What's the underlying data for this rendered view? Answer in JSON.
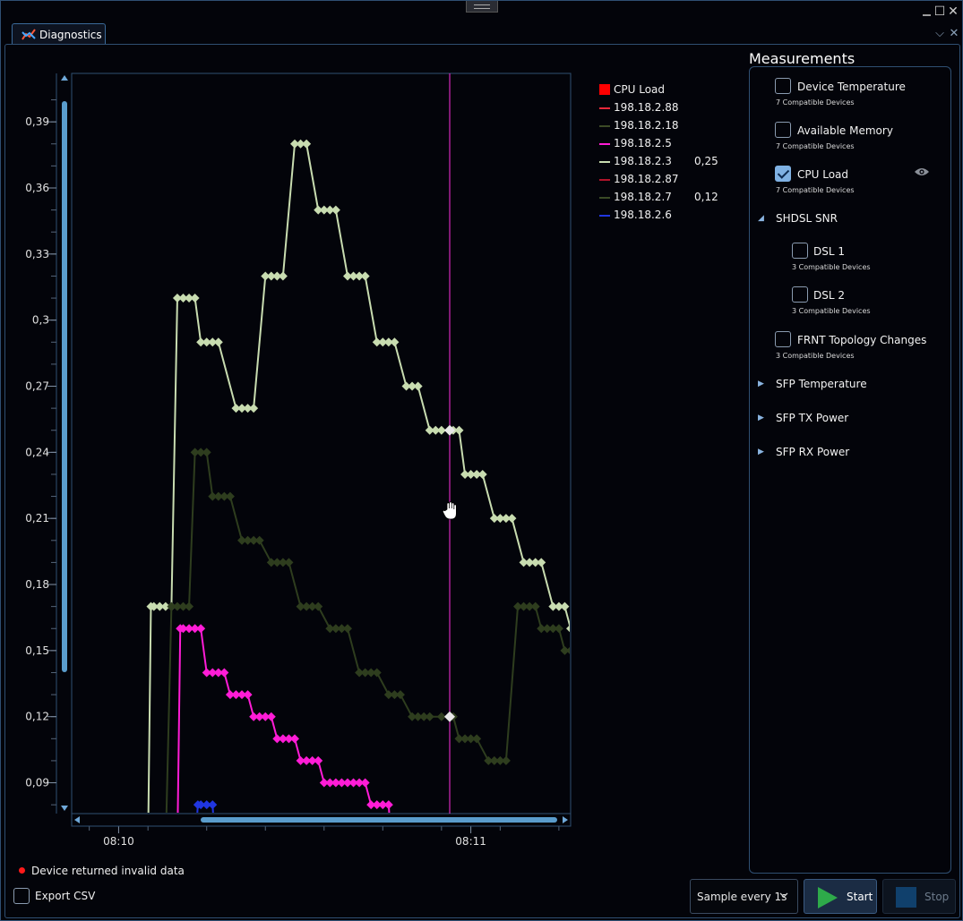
{
  "window": {
    "maximize_glyph": "☐",
    "close_glyph": "✕"
  },
  "tab": {
    "label": "Diagnostics",
    "chevron_glyph": "⌵",
    "close_glyph": "✕"
  },
  "chart_data": {
    "type": "line",
    "title": "",
    "xlabel": "",
    "ylabel": "",
    "ylim": [
      0.076,
      0.412
    ],
    "x_unit": "seconds after 08:10",
    "xlim": [
      -8,
      77
    ],
    "yticks": [
      "0,09",
      "0,12",
      "0,15",
      "0,18",
      "0,21",
      "0,24",
      "0,27",
      "0,3",
      "0,33",
      "0,36",
      "0,39"
    ],
    "ytick_values": [
      0.09,
      0.12,
      0.15,
      0.18,
      0.21,
      0.24,
      0.27,
      0.3,
      0.33,
      0.36,
      0.39
    ],
    "xticks": [
      "08:10",
      "08:11"
    ],
    "xtick_values": [
      0,
      60
    ],
    "cursor_x": 56.4,
    "series": [
      {
        "name": "198.18.2.3",
        "color": "#c8dcb0",
        "points": [
          [
            5,
            0.06
          ],
          [
            5.5,
            0.17
          ],
          [
            6,
            0.17
          ],
          [
            7,
            0.17
          ],
          [
            8,
            0.17
          ],
          [
            9,
            0.17
          ],
          [
            10,
            0.31
          ],
          [
            11,
            0.31
          ],
          [
            12,
            0.31
          ],
          [
            13,
            0.31
          ],
          [
            14,
            0.29
          ],
          [
            15,
            0.29
          ],
          [
            16,
            0.29
          ],
          [
            17,
            0.29
          ],
          [
            20,
            0.26
          ],
          [
            21,
            0.26
          ],
          [
            22,
            0.26
          ],
          [
            23,
            0.26
          ],
          [
            25,
            0.32
          ],
          [
            26,
            0.32
          ],
          [
            27,
            0.32
          ],
          [
            28,
            0.32
          ],
          [
            30,
            0.38
          ],
          [
            31,
            0.38
          ],
          [
            32,
            0.38
          ],
          [
            34,
            0.35
          ],
          [
            35,
            0.35
          ],
          [
            36,
            0.35
          ],
          [
            37,
            0.35
          ],
          [
            39,
            0.32
          ],
          [
            40,
            0.32
          ],
          [
            41,
            0.32
          ],
          [
            42,
            0.32
          ],
          [
            44,
            0.29
          ],
          [
            45,
            0.29
          ],
          [
            46,
            0.29
          ],
          [
            47,
            0.29
          ],
          [
            49,
            0.27
          ],
          [
            50,
            0.27
          ],
          [
            51,
            0.27
          ],
          [
            53,
            0.25
          ],
          [
            54,
            0.25
          ],
          [
            55,
            0.25
          ],
          [
            56.4,
            0.25
          ],
          [
            57,
            0.25
          ],
          [
            58,
            0.25
          ],
          [
            59,
            0.23
          ],
          [
            60,
            0.23
          ],
          [
            61,
            0.23
          ],
          [
            62,
            0.23
          ],
          [
            64,
            0.21
          ],
          [
            65,
            0.21
          ],
          [
            66,
            0.21
          ],
          [
            67,
            0.21
          ],
          [
            69,
            0.19
          ],
          [
            70,
            0.19
          ],
          [
            71,
            0.19
          ],
          [
            72,
            0.19
          ],
          [
            74,
            0.17
          ],
          [
            75,
            0.17
          ],
          [
            76,
            0.17
          ],
          [
            77,
            0.16
          ]
        ]
      },
      {
        "name": "198.18.2.7",
        "color": "#2e3d1e",
        "points": [
          [
            8,
            0.06
          ],
          [
            9,
            0.17
          ],
          [
            10,
            0.17
          ],
          [
            11,
            0.17
          ],
          [
            12,
            0.17
          ],
          [
            13,
            0.24
          ],
          [
            14,
            0.24
          ],
          [
            15,
            0.24
          ],
          [
            16,
            0.22
          ],
          [
            17,
            0.22
          ],
          [
            18,
            0.22
          ],
          [
            19,
            0.22
          ],
          [
            21,
            0.2
          ],
          [
            22,
            0.2
          ],
          [
            23,
            0.2
          ],
          [
            24,
            0.2
          ],
          [
            26,
            0.19
          ],
          [
            27,
            0.19
          ],
          [
            28,
            0.19
          ],
          [
            29,
            0.19
          ],
          [
            31,
            0.17
          ],
          [
            32,
            0.17
          ],
          [
            33,
            0.17
          ],
          [
            34,
            0.17
          ],
          [
            36,
            0.16
          ],
          [
            37,
            0.16
          ],
          [
            38,
            0.16
          ],
          [
            39,
            0.16
          ],
          [
            41,
            0.14
          ],
          [
            42,
            0.14
          ],
          [
            43,
            0.14
          ],
          [
            44,
            0.14
          ],
          [
            46,
            0.13
          ],
          [
            47,
            0.13
          ],
          [
            48,
            0.13
          ],
          [
            50,
            0.12
          ],
          [
            51,
            0.12
          ],
          [
            52,
            0.12
          ],
          [
            53,
            0.12
          ],
          [
            55,
            0.12
          ],
          [
            56.4,
            0.12
          ],
          [
            57,
            0.12
          ],
          [
            58,
            0.11
          ],
          [
            59,
            0.11
          ],
          [
            60,
            0.11
          ],
          [
            61,
            0.11
          ],
          [
            63,
            0.1
          ],
          [
            64,
            0.1
          ],
          [
            65,
            0.1
          ],
          [
            66,
            0.1
          ],
          [
            68,
            0.17
          ],
          [
            69,
            0.17
          ],
          [
            70,
            0.17
          ],
          [
            71,
            0.17
          ],
          [
            72,
            0.16
          ],
          [
            73,
            0.16
          ],
          [
            74,
            0.16
          ],
          [
            75,
            0.16
          ],
          [
            76,
            0.15
          ],
          [
            77,
            0.15
          ]
        ]
      },
      {
        "name": "198.18.2.5",
        "color": "#ff1cd6",
        "points": [
          [
            10,
            0.06
          ],
          [
            10.5,
            0.16
          ],
          [
            11,
            0.16
          ],
          [
            12,
            0.16
          ],
          [
            13,
            0.16
          ],
          [
            14,
            0.16
          ],
          [
            15,
            0.14
          ],
          [
            16,
            0.14
          ],
          [
            17,
            0.14
          ],
          [
            18,
            0.14
          ],
          [
            19,
            0.13
          ],
          [
            20,
            0.13
          ],
          [
            21,
            0.13
          ],
          [
            22,
            0.13
          ],
          [
            23,
            0.12
          ],
          [
            24,
            0.12
          ],
          [
            25,
            0.12
          ],
          [
            26,
            0.12
          ],
          [
            27,
            0.11
          ],
          [
            28,
            0.11
          ],
          [
            29,
            0.11
          ],
          [
            30,
            0.11
          ],
          [
            31,
            0.1
          ],
          [
            32,
            0.1
          ],
          [
            33,
            0.1
          ],
          [
            34,
            0.1
          ],
          [
            35,
            0.09
          ],
          [
            36,
            0.09
          ],
          [
            37,
            0.09
          ],
          [
            38,
            0.09
          ],
          [
            39,
            0.09
          ],
          [
            40,
            0.09
          ],
          [
            41,
            0.09
          ],
          [
            42,
            0.09
          ],
          [
            43,
            0.08
          ],
          [
            44,
            0.08
          ],
          [
            45,
            0.08
          ],
          [
            46,
            0.08
          ],
          [
            46.5,
            0.06
          ]
        ]
      },
      {
        "name": "198.18.2.6",
        "color": "#2036e0",
        "points": [
          [
            13,
            0.06
          ],
          [
            13.5,
            0.08
          ],
          [
            14,
            0.08
          ],
          [
            15,
            0.08
          ],
          [
            16,
            0.08
          ],
          [
            16.5,
            0.06
          ]
        ]
      },
      {
        "name": "198.18.2.88",
        "color": "#e8283a",
        "points": []
      },
      {
        "name": "198.18.2.18",
        "color": "#3c4a26",
        "points": []
      },
      {
        "name": "198.18.2.87",
        "color": "#b0142a",
        "points": []
      }
    ]
  },
  "legend": {
    "title": {
      "label": "CPU Load",
      "color": "#ff0000"
    },
    "items": [
      {
        "label": "198.18.2.88",
        "color": "#e8283a",
        "value": ""
      },
      {
        "label": "198.18.2.18",
        "color": "#3c4a26",
        "value": ""
      },
      {
        "label": "198.18.2.5",
        "color": "#ff1cd6",
        "value": ""
      },
      {
        "label": "198.18.2.3",
        "color": "#c8dcb0",
        "value": "0,25"
      },
      {
        "label": "198.18.2.87",
        "color": "#b0142a",
        "value": ""
      },
      {
        "label": "198.18.2.7",
        "color": "#3a4a26",
        "value": "0,12"
      },
      {
        "label": "198.18.2.6",
        "color": "#2036e0",
        "value": ""
      }
    ]
  },
  "measurements": {
    "title": "Measurements",
    "device_temperature": {
      "label": "Device Temperature",
      "sub": "7 Compatible Devices",
      "checked": false
    },
    "available_memory": {
      "label": "Available Memory",
      "sub": "7 Compatible Devices",
      "checked": false
    },
    "cpu_load": {
      "label": "CPU Load",
      "sub": "7 Compatible Devices",
      "checked": true
    },
    "shdsl_snr": {
      "label": "SHDSL SNR",
      "expanded": true
    },
    "dsl1": {
      "label": "DSL 1",
      "sub": "3 Compatible Devices",
      "checked": false
    },
    "dsl2": {
      "label": "DSL 2",
      "sub": "3 Compatible Devices",
      "checked": false
    },
    "frnt": {
      "label": "FRNT Topology Changes",
      "sub": "3 Compatible Devices",
      "checked": false
    },
    "sfp_temperature": {
      "label": "SFP Temperature",
      "expanded": false
    },
    "sfp_tx_power": {
      "label": "SFP TX Power",
      "expanded": false
    },
    "sfp_rx_power": {
      "label": "SFP RX Power",
      "expanded": false
    }
  },
  "status": {
    "invalid_data_label": "Device returned invalid data",
    "dot_color": "#ff1a1a"
  },
  "export": {
    "label": "Export CSV",
    "checked": false
  },
  "sample": {
    "selected": "Sample every 1s"
  },
  "start": {
    "label": "Start"
  },
  "stop": {
    "label": "Stop",
    "enabled": false
  }
}
